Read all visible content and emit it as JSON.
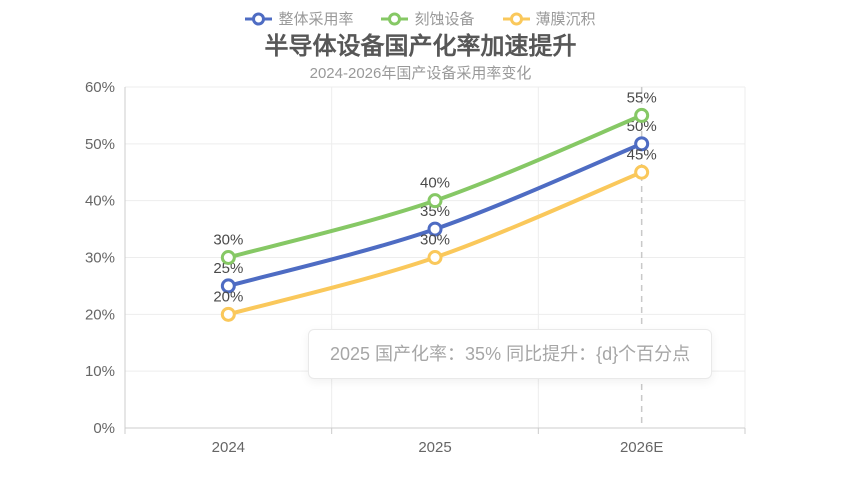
{
  "chart_data": {
    "type": "line",
    "title": "半导体设备国产化率加速提升",
    "subtitle": "2024-2026年国产设备采用率变化",
    "categories": [
      "2024",
      "2025",
      "2026E"
    ],
    "series": [
      {
        "name": "整体采用率",
        "color": "#4E6CC3",
        "values": [
          25,
          35,
          50
        ],
        "labels": [
          "25%",
          "35%",
          "50%"
        ]
      },
      {
        "name": "刻蚀设备",
        "color": "#86C865",
        "values": [
          30,
          40,
          55
        ],
        "labels": [
          "30%",
          "40%",
          "55%"
        ]
      },
      {
        "name": "薄膜沉积",
        "color": "#FAC85B",
        "values": [
          20,
          30,
          45
        ],
        "labels": [
          "20%",
          "30%",
          "45%"
        ]
      }
    ],
    "ylim": [
      0,
      60
    ],
    "y_ticks": [
      {
        "value": 0,
        "label": "0%"
      },
      {
        "value": 10,
        "label": "10%"
      },
      {
        "value": 20,
        "label": "20%"
      },
      {
        "value": 30,
        "label": "30%"
      },
      {
        "value": 40,
        "label": "40%"
      },
      {
        "value": 50,
        "label": "50%"
      },
      {
        "value": 60,
        "label": "60%"
      }
    ],
    "grid": true,
    "legend_position": "top",
    "smooth": true,
    "marked_category": "2026E",
    "tooltip": {
      "text": "2025 国产化率：35% 同比提升：{d}个百分点"
    },
    "colors": {
      "axis_line": "#cccccc",
      "grid_line": "#ededed",
      "dashed_marker": "#c9c9c9",
      "axis_label": "#666666",
      "data_label": "#4a4a4a"
    }
  }
}
